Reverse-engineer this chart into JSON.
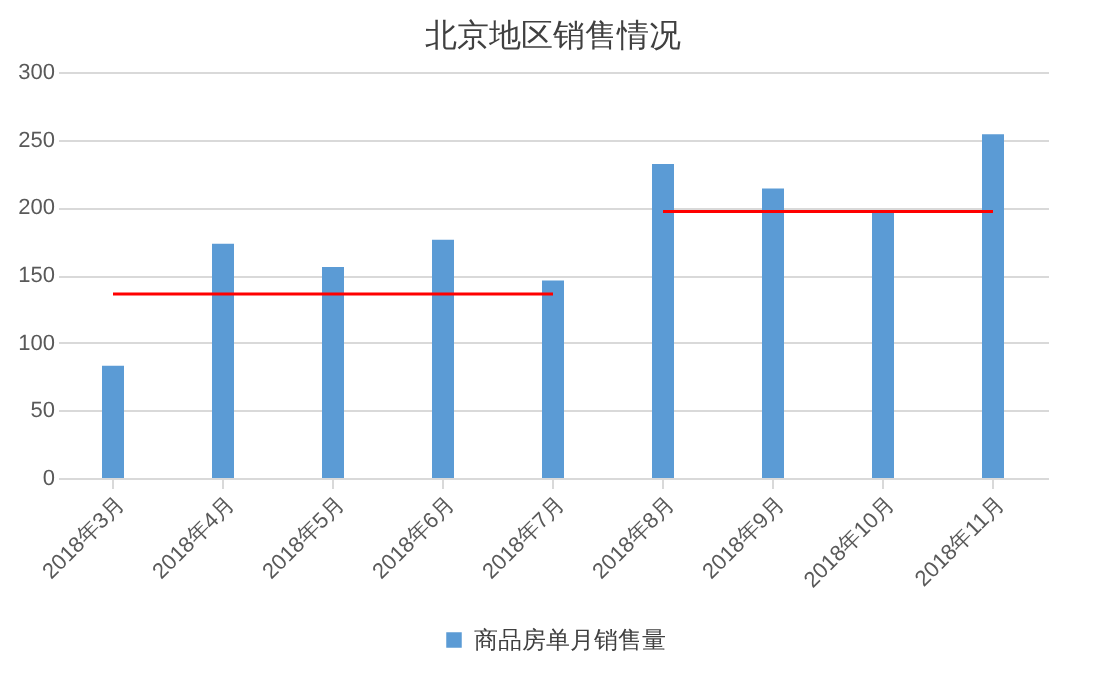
{
  "chart_data": {
    "type": "bar",
    "title": "北京地区销售情况",
    "categories": [
      "2018年3月",
      "2018年4月",
      "2018年5月",
      "2018年6月",
      "2018年7月",
      "2018年8月",
      "2018年9月",
      "2018年10月",
      "2018年11月"
    ],
    "series": [
      {
        "name": "商品房单月销售量",
        "color": "#5b9bd5",
        "values": [
          83,
          173,
          156,
          176,
          146,
          232,
          214,
          197,
          254
        ]
      },
      {
        "type": "line",
        "color": "#ff0000",
        "values": [
          136,
          136,
          136,
          136,
          136,
          null,
          null,
          null,
          null
        ]
      },
      {
        "type": "line",
        "color": "#ff0000",
        "values": [
          null,
          null,
          null,
          null,
          null,
          197,
          197,
          197,
          197
        ]
      }
    ],
    "ylim": [
      0,
      300
    ],
    "yticks": [
      0,
      50,
      100,
      150,
      200,
      250,
      300
    ],
    "grid": "y",
    "legend": "bottom"
  }
}
